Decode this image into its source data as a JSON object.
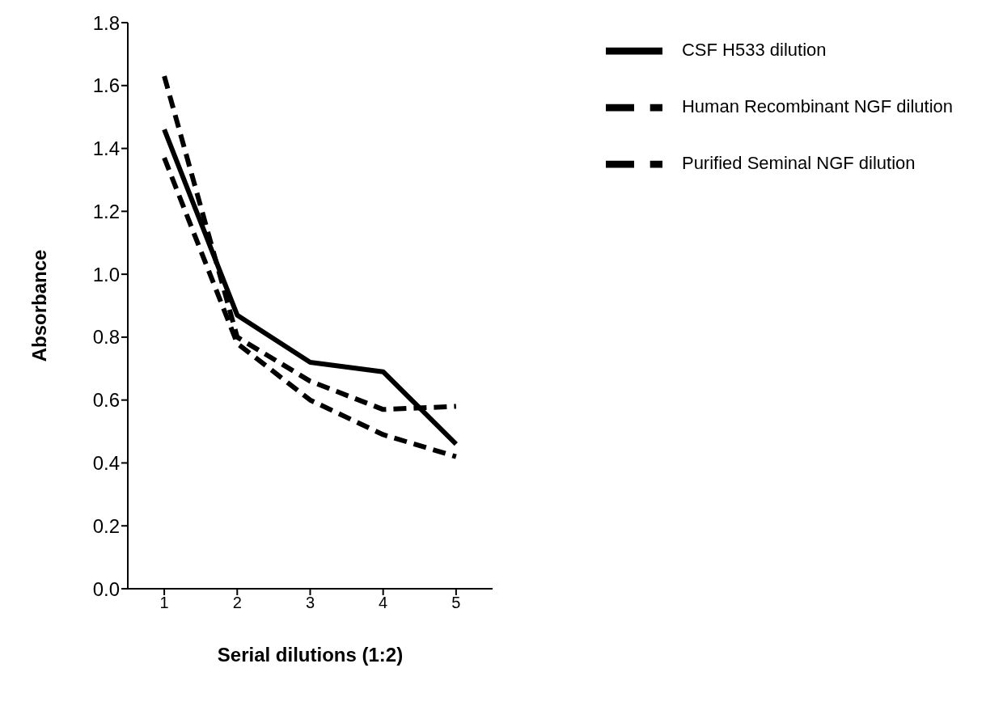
{
  "chart_data": {
    "type": "line",
    "xlabel": "Serial dilutions (1:2)",
    "ylabel": "Absorbance",
    "categories": [
      "1",
      "2",
      "3",
      "4",
      "5"
    ],
    "series": [
      {
        "name": "CSF H533 dilution",
        "color": "#000000",
        "line_style": "solid",
        "values": [
          1.46,
          0.87,
          0.72,
          0.69,
          0.46
        ]
      },
      {
        "name": "Purified Seminal NGF dilution",
        "color": "#000000",
        "line_style": "dashed",
        "values": [
          1.37,
          0.78,
          0.6,
          0.49,
          0.42
        ]
      },
      {
        "name": "Human Recombinant NGF dilution",
        "color": "#000000",
        "line_style": "dashed",
        "values": [
          1.63,
          0.8,
          0.66,
          0.57,
          0.58
        ]
      }
    ],
    "ylim": [
      0,
      1.8
    ],
    "yticks": [
      {
        "value": 0,
        "label": "0.0"
      },
      0.2,
      0.4,
      0.6,
      0.8,
      {
        "value": 1,
        "label": "1.0"
      },
      1.2,
      1.4,
      1.6,
      1.8
    ],
    "grid": false,
    "legend": "top right",
    "marker": "none"
  }
}
